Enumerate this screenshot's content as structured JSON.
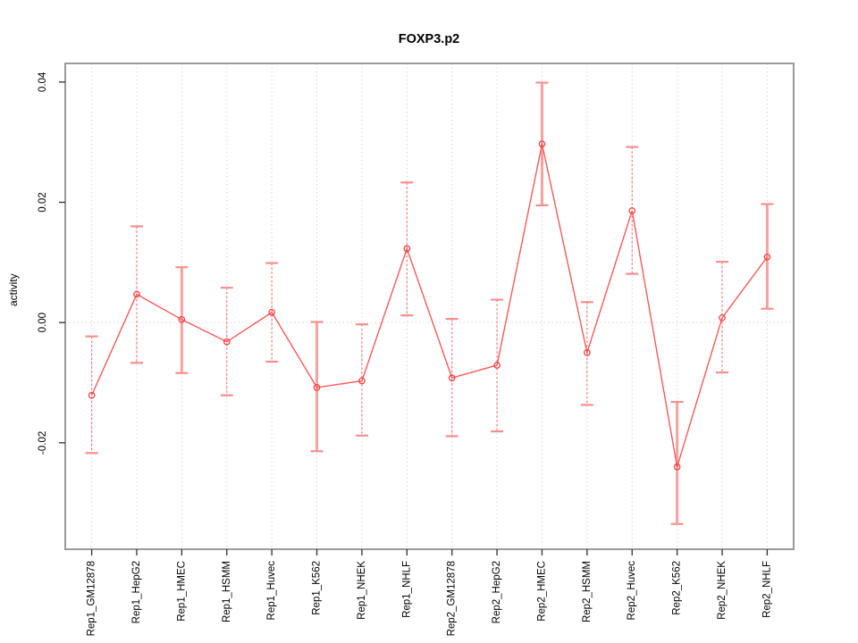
{
  "title": "FOXP3.p2",
  "y_axis_title": "activity",
  "chart_data": {
    "type": "line",
    "title": "FOXP3.p2",
    "xlabel": "",
    "ylabel": "activity",
    "legend_position": "none",
    "marker": "open-circle",
    "grid": "vertical dotted gridlines at each category; dotted horizontal line at y=0",
    "categories": [
      "Rep1_GM12878",
      "Rep1_HepG2",
      "Rep1_HMEC",
      "Rep1_HSMM",
      "Rep1_Huvec",
      "Rep1_K562",
      "Rep1_NHEK",
      "Rep1_NHLF",
      "Rep2_GM12878",
      "Rep2_HepG2",
      "Rep2_HMEC",
      "Rep2_HSMM",
      "Rep2_Huvec",
      "Rep2_K562",
      "Rep2_NHEK",
      "Rep2_NHLF"
    ],
    "series": [
      {
        "name": "activity",
        "values": [
          -0.0121,
          0.0047,
          0.0005,
          -0.0032,
          0.0017,
          -0.0108,
          -0.0097,
          0.0123,
          -0.0092,
          -0.0071,
          0.0297,
          -0.005,
          0.0186,
          -0.024,
          0.0008,
          0.0109
        ]
      }
    ],
    "error_bars": {
      "upper": [
        -0.0023,
        0.016,
        0.0092,
        0.0058,
        0.0099,
        0.0001,
        -0.0003,
        0.0233,
        0.0006,
        0.0038,
        0.0399,
        0.0034,
        0.0292,
        -0.0132,
        0.0101,
        0.0197
      ],
      "lower": [
        -0.0217,
        -0.0067,
        -0.0084,
        -0.0121,
        -0.0065,
        -0.0214,
        -0.0188,
        0.0012,
        -0.0189,
        -0.0181,
        0.0195,
        -0.0137,
        0.0081,
        -0.0335,
        -0.0083,
        0.0023
      ],
      "thick_style": [
        false,
        false,
        true,
        false,
        false,
        true,
        false,
        false,
        false,
        false,
        true,
        false,
        false,
        true,
        false,
        true
      ]
    },
    "ytick_values": [
      -0.02,
      0.0,
      0.02,
      0.04
    ],
    "ytick_labels": [
      "-0.02",
      "0.00",
      "0.02",
      "0.04"
    ],
    "ylim": [
      -0.0377,
      0.0431
    ],
    "colors": {
      "line": "#f35b5b",
      "marker": "#ee4444",
      "error_thin": "#f26d6d",
      "error_thick": "#f9a0a0",
      "error_cap": "#f58f8f",
      "grid": "#d6d6d6",
      "frame": "#9a9a9a",
      "tick": "#2e2e2e",
      "text": "#000000"
    }
  }
}
